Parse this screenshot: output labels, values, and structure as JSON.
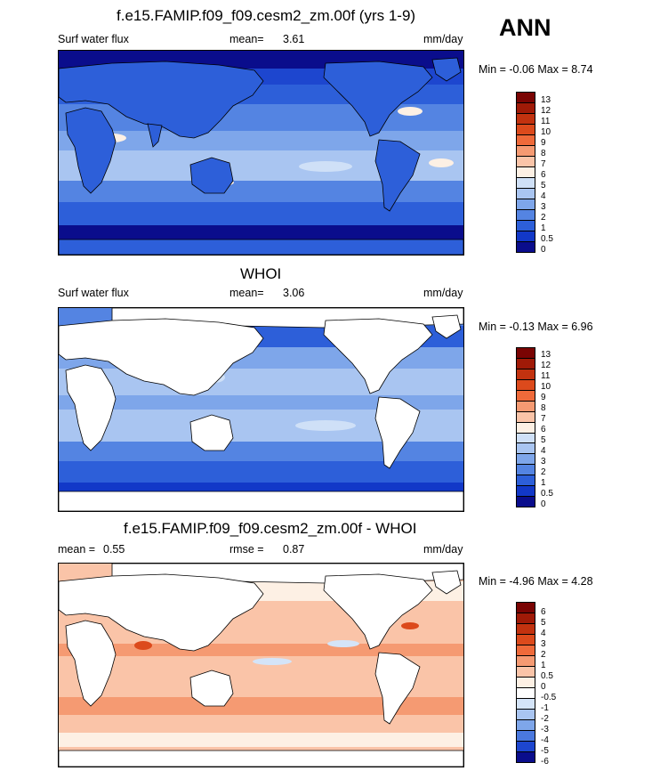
{
  "season": "ANN",
  "panels": [
    {
      "id": "model",
      "title": "f.e15.FAMIP.f09_f09.cesm2_zm.00f (yrs 1-9)",
      "left_label": "Surf water flux",
      "stat_label": "mean=",
      "stat_value": "3.61",
      "stat2_label": "",
      "stat2_value": "",
      "units": "mm/day",
      "minmax": "Min =  -0.06 Max =   8.74",
      "colorbar_ticks": [
        "13",
        "12",
        "11",
        "10",
        "9",
        "8",
        "7",
        "6",
        "5",
        "4",
        "3",
        "2",
        "1",
        "0.5",
        "0"
      ]
    },
    {
      "id": "obs",
      "title": "WHOI",
      "left_label": "Surf water flux",
      "stat_label": "mean=",
      "stat_value": "3.06",
      "stat2_label": "",
      "stat2_value": "",
      "units": "mm/day",
      "minmax": "Min =  -0.13 Max =   6.96",
      "colorbar_ticks": [
        "13",
        "12",
        "11",
        "10",
        "9",
        "8",
        "7",
        "6",
        "5",
        "4",
        "3",
        "2",
        "1",
        "0.5",
        "0"
      ]
    },
    {
      "id": "diff",
      "title": "f.e15.FAMIP.f09_f09.cesm2_zm.00f - WHOI",
      "left_label": "mean =",
      "stat_label": "",
      "stat_value": "0.55",
      "stat2_label": "rmse =",
      "stat2_value": "0.87",
      "units": "mm/day",
      "minmax": "Min =  -4.96 Max =   4.28",
      "colorbar_ticks": [
        "6",
        "5",
        "4",
        "3",
        "2",
        "1",
        "0.5",
        "0",
        "-0.5",
        "-1",
        "-2",
        "-3",
        "-4",
        "-5",
        "-6"
      ]
    }
  ],
  "colors": {
    "abs_scale": [
      "#7a0403",
      "#a01a07",
      "#c2320f",
      "#dc4a1c",
      "#ef6a3a",
      "#f59a72",
      "#fac4a8",
      "#fdf0e4",
      "#cfe0f7",
      "#a9c5f1",
      "#7ea6ea",
      "#5484e2",
      "#2d5fd9",
      "#1238c8",
      "#0a0d8c"
    ],
    "diff_scale": [
      "#7a0403",
      "#a01a07",
      "#c2320f",
      "#dc4a1c",
      "#ef6a3a",
      "#f59a72",
      "#fac4a8",
      "#fdf0e4",
      "#ffffff",
      "#d4e4f8",
      "#a9c5f1",
      "#7ea6ea",
      "#4a78de",
      "#1d46cf",
      "#0a0d8c"
    ],
    "land": "#ffffff",
    "coast": "#000000"
  },
  "chart_data": [
    {
      "type": "heatmap",
      "title": "f.e15.FAMIP.f09_f09.cesm2_zm.00f (yrs 1-9)",
      "variable": "Surf water flux",
      "units": "mm/day",
      "mean": 3.61,
      "min": -0.06,
      "max": 8.74,
      "contour_levels": [
        0,
        0.5,
        1,
        2,
        3,
        4,
        5,
        6,
        7,
        8,
        9,
        10,
        11,
        12,
        13
      ],
      "land_masked": false
    },
    {
      "type": "heatmap",
      "title": "WHOI",
      "variable": "Surf water flux",
      "units": "mm/day",
      "mean": 3.06,
      "min": -0.13,
      "max": 6.96,
      "contour_levels": [
        0,
        0.5,
        1,
        2,
        3,
        4,
        5,
        6,
        7,
        8,
        9,
        10,
        11,
        12,
        13
      ],
      "land_masked": true
    },
    {
      "type": "heatmap",
      "title": "f.e15.FAMIP.f09_f09.cesm2_zm.00f - WHOI",
      "units": "mm/day",
      "mean": 0.55,
      "rmse": 0.87,
      "min": -4.96,
      "max": 4.28,
      "contour_levels": [
        -6,
        -5,
        -4,
        -3,
        -2,
        -1,
        -0.5,
        0,
        0.5,
        1,
        2,
        3,
        4,
        5,
        6
      ],
      "land_masked": true
    }
  ]
}
